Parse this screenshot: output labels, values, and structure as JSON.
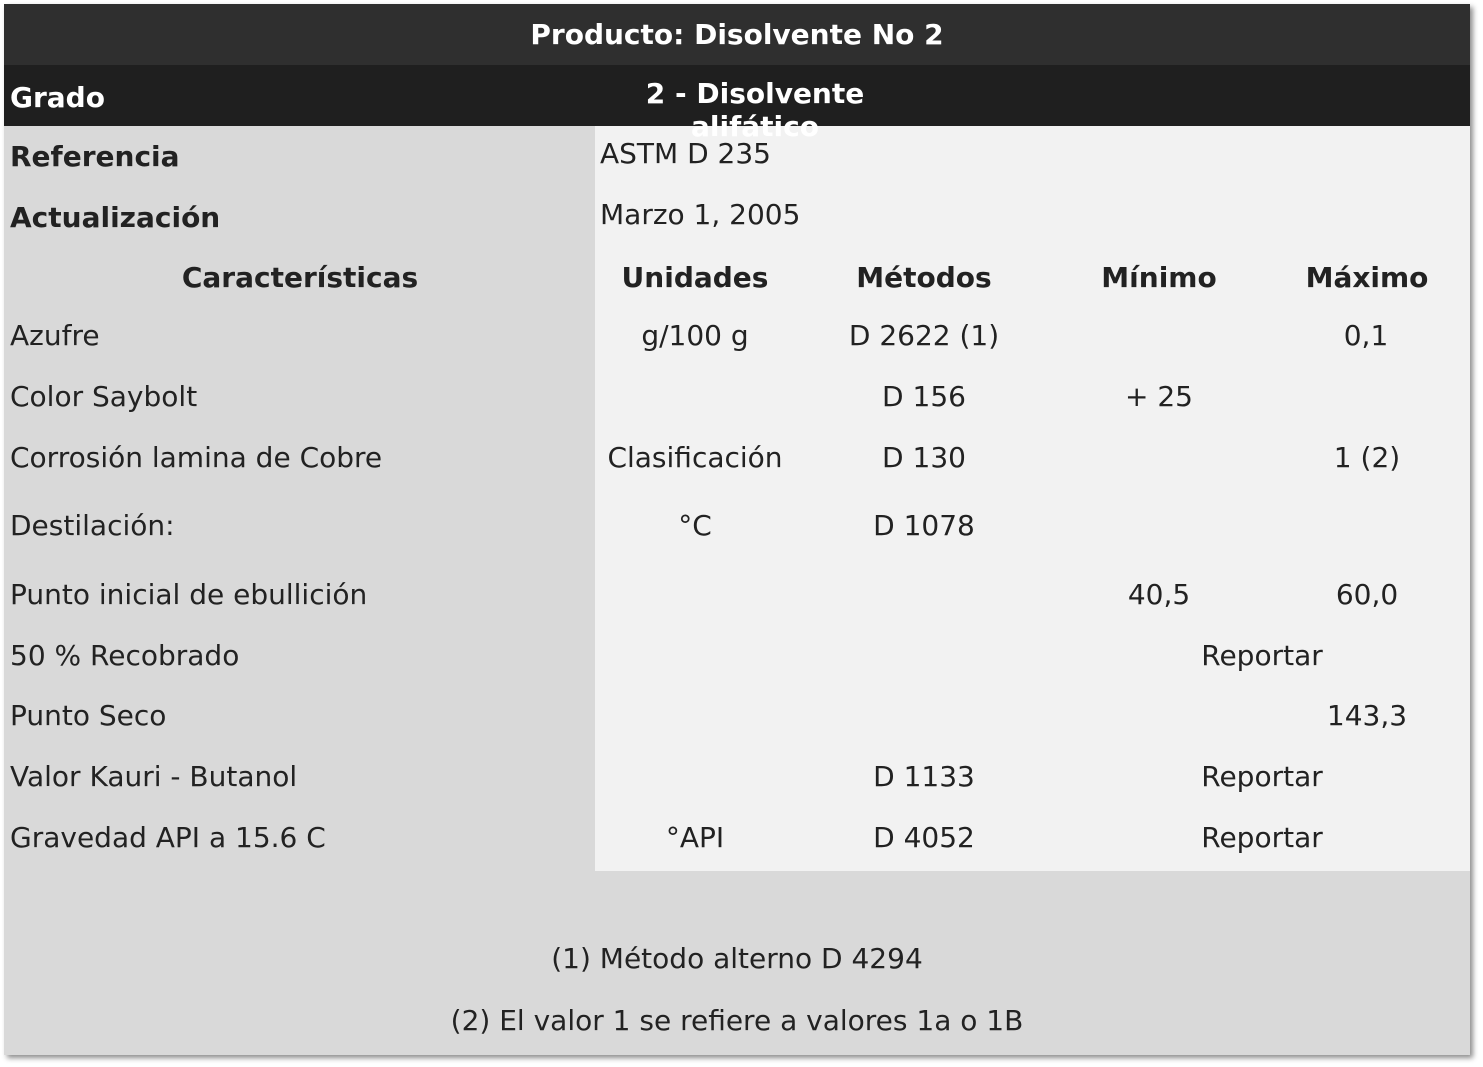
{
  "header": {
    "title": "Producto: Disolvente No 2",
    "grade_label": "Grado",
    "grade_value": "2 - Disolvente alifático"
  },
  "meta": [
    {
      "label": "Referencia",
      "value": "ASTM D 235"
    },
    {
      "label": "Actualización",
      "value": "Marzo 1, 2005"
    }
  ],
  "columns": [
    "Características",
    "Unidades",
    "Métodos",
    "Mínimo",
    "Máximo"
  ],
  "rows": [
    {
      "caracteristica": "Azufre",
      "unidades": "g/100 g",
      "metodo": "D 2622 (1)",
      "minimo": "",
      "maximo": "0,1"
    },
    {
      "caracteristica": "Color Saybolt",
      "unidades": "",
      "metodo": "D 156",
      "minimo": "+ 25",
      "maximo": ""
    },
    {
      "caracteristica": "Corrosión lamina de Cobre",
      "unidades": "Clasificación",
      "metodo": "D 130",
      "minimo": "",
      "maximo": "1 (2)"
    },
    {
      "caracteristica": "Destilación:",
      "unidades": "°C",
      "metodo": "D 1078",
      "minimo": "",
      "maximo": ""
    },
    {
      "caracteristica": "Punto inicial de ebullición",
      "unidades": "",
      "metodo": "",
      "minimo": "40,5",
      "maximo": "60,0"
    },
    {
      "caracteristica": "50 % Recobrado",
      "unidades": "",
      "metodo": "",
      "span": "Reportar"
    },
    {
      "caracteristica": "Punto Seco",
      "unidades": "",
      "metodo": "",
      "minimo": "",
      "maximo": "143,3"
    },
    {
      "caracteristica": "Valor Kauri - Butanol",
      "unidades": "",
      "metodo": "D 1133",
      "span": "Reportar"
    },
    {
      "caracteristica": "Gravedad API a 15.6 C",
      "unidades": "°API",
      "metodo": "D 4052",
      "span": "Reportar"
    }
  ],
  "notes": [
    "(1) Método alterno D 4294",
    "(2) El valor 1 se refiere a valores 1a o 1B"
  ]
}
